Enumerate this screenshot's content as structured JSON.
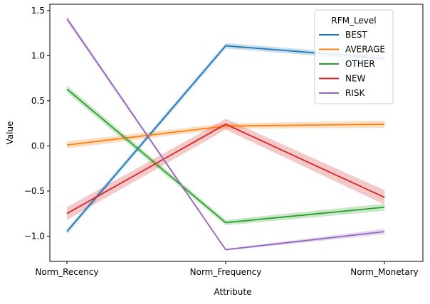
{
  "chart_data": {
    "type": "line",
    "x": [
      "Norm_Recency",
      "Norm_Frequency",
      "Norm_Monetary"
    ],
    "xlabel": "Attribute",
    "ylabel": "Value",
    "ylim": [
      -1.28,
      1.57
    ],
    "yticks": [
      -1.0,
      -0.5,
      0.0,
      0.5,
      1.0,
      1.5
    ],
    "ytick_labels": [
      "−1.0",
      "−0.5",
      "0.0",
      "0.5",
      "1.0",
      "1.5"
    ],
    "grid": false,
    "legend": {
      "title": "RFM_Level",
      "placement": "top-right"
    },
    "series": [
      {
        "name": "BEST",
        "color": "#1f77b4",
        "values": [
          -0.95,
          1.11,
          0.97
        ],
        "ci_halfwidth": [
          0.03,
          0.03,
          0.03
        ]
      },
      {
        "name": "AVERAGE",
        "color": "#ff7f0e",
        "values": [
          0.01,
          0.22,
          0.24
        ],
        "ci_halfwidth": [
          0.04,
          0.03,
          0.04
        ]
      },
      {
        "name": "OTHER",
        "color": "#2ca02c",
        "values": [
          0.63,
          -0.85,
          -0.68
        ],
        "ci_halfwidth": [
          0.04,
          0.03,
          0.04
        ]
      },
      {
        "name": "NEW",
        "color": "#d62728",
        "values": [
          -0.75,
          0.24,
          -0.57
        ],
        "ci_halfwidth": [
          0.07,
          0.06,
          0.08
        ]
      },
      {
        "name": "RISK",
        "color": "#9467bd",
        "values": [
          1.41,
          -1.15,
          -0.95
        ],
        "ci_halfwidth": [
          0.03,
          0.01,
          0.03
        ]
      }
    ]
  }
}
